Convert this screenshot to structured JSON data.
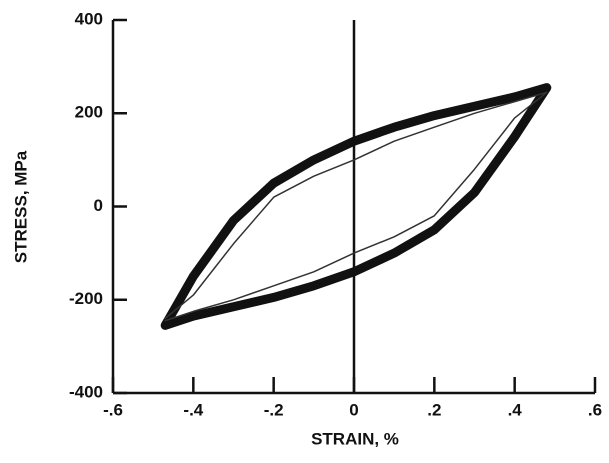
{
  "chart_data": {
    "type": "line",
    "x_label": "STRAIN, %",
    "y_label": "STRESS, MPa",
    "xlim": [
      -0.6,
      0.6
    ],
    "ylim": [
      -400,
      400
    ],
    "xticks": [
      {
        "value": -0.6,
        "label": "-.6"
      },
      {
        "value": -0.4,
        "label": "-.4"
      },
      {
        "value": -0.2,
        "label": "-.2"
      },
      {
        "value": 0,
        "label": "0"
      },
      {
        "value": 0.2,
        "label": ".2"
      },
      {
        "value": 0.4,
        "label": ".4"
      },
      {
        "value": 0.6,
        "label": ".6"
      }
    ],
    "yticks": [
      400,
      200,
      0,
      -200,
      -400
    ],
    "zero_line": true,
    "series": [
      {
        "color": "#111111",
        "line_width": 9,
        "x": [
          -0.47,
          -0.4,
          -0.3,
          -0.2,
          -0.1,
          0,
          0.1,
          0.2,
          0.3,
          0.4,
          0.48,
          0.4,
          0.3,
          0.2,
          0.1,
          0,
          -0.1,
          -0.2,
          -0.3,
          -0.4,
          -0.47
        ],
        "values": [
          -255,
          -150,
          -30,
          50,
          100,
          140,
          170,
          195,
          215,
          235,
          255,
          150,
          30,
          -50,
          -100,
          -140,
          -170,
          -195,
          -215,
          -235,
          -255
        ]
      },
      {
        "color": "#333333",
        "line_width": 1.5,
        "x": [
          -0.47,
          -0.4,
          -0.3,
          -0.2,
          -0.1,
          0,
          0.1,
          0.2,
          0.3,
          0.4,
          0.48,
          0.4,
          0.3,
          0.2,
          0.1,
          0,
          -0.1,
          -0.2,
          -0.3,
          -0.4,
          -0.47
        ],
        "values": [
          -240,
          -190,
          -80,
          20,
          65,
          100,
          140,
          170,
          200,
          225,
          245,
          190,
          80,
          -20,
          -65,
          -100,
          -140,
          -170,
          -200,
          -225,
          -245
        ]
      }
    ]
  }
}
